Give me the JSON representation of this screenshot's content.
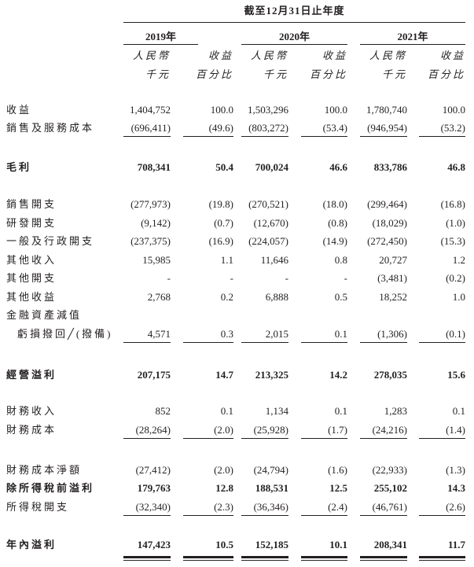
{
  "header": {
    "period_title": "截至12月31日止年度",
    "years": [
      "2019年",
      "2020年",
      "2021年"
    ],
    "col_sub_amount": [
      "人民幣",
      "千元"
    ],
    "col_sub_percent": [
      "收益",
      "百分比"
    ]
  },
  "rows": [
    {
      "label": "收益",
      "values": [
        "1,404,752",
        "100.0",
        "1,503,296",
        "100.0",
        "1,780,740",
        "100.0"
      ]
    },
    {
      "label": "銷售及服務成本",
      "values": [
        "(696,411)",
        "(49.6)",
        "(803,272)",
        "(53.4)",
        "(946,954)",
        "(53.2)"
      ],
      "rule": "single"
    },
    {
      "label": "毛利",
      "values": [
        "708,341",
        "50.4",
        "700,024",
        "46.6",
        "833,786",
        "46.8"
      ],
      "bold": true
    },
    {
      "label": "銷售開支",
      "values": [
        "(277,973)",
        "(19.8)",
        "(270,521)",
        "(18.0)",
        "(299,464)",
        "(16.8)"
      ]
    },
    {
      "label": "研發開支",
      "values": [
        "(9,142)",
        "(0.7)",
        "(12,670)",
        "(0.8)",
        "(18,029)",
        "(1.0)"
      ]
    },
    {
      "label": "一般及行政開支",
      "values": [
        "(237,375)",
        "(16.9)",
        "(224,057)",
        "(14.9)",
        "(272,450)",
        "(15.3)"
      ]
    },
    {
      "label": "其他收入",
      "values": [
        "15,985",
        "1.1",
        "11,646",
        "0.8",
        "20,727",
        "1.2"
      ]
    },
    {
      "label": "其他開支",
      "values": [
        "-",
        "-",
        "-",
        "-",
        "(3,481)",
        "(0.2)"
      ]
    },
    {
      "label": "其他收益",
      "values": [
        "2,768",
        "0.2",
        "6,888",
        "0.5",
        "18,252",
        "1.0"
      ]
    },
    {
      "label": "金融資產減值",
      "values": [
        "",
        "",
        "",
        "",
        "",
        ""
      ]
    },
    {
      "label": "虧損撥回╱(撥備)",
      "values": [
        "4,571",
        "0.3",
        "2,015",
        "0.1",
        "(1,306)",
        "(0.1)"
      ],
      "rule": "single",
      "indent": true
    },
    {
      "label": "經營溢利",
      "values": [
        "207,175",
        "14.7",
        "213,325",
        "14.2",
        "278,035",
        "15.6"
      ],
      "bold": true
    },
    {
      "label": "財務收入",
      "values": [
        "852",
        "0.1",
        "1,134",
        "0.1",
        "1,283",
        "0.1"
      ]
    },
    {
      "label": "財務成本",
      "values": [
        "(28,264)",
        "(2.0)",
        "(25,928)",
        "(1.7)",
        "(24,216)",
        "(1.4)"
      ],
      "rule": "single"
    },
    {
      "label": "財務成本淨額",
      "values": [
        "(27,412)",
        "(2.0)",
        "(24,794)",
        "(1.6)",
        "(22,933)",
        "(1.3)"
      ]
    },
    {
      "label": "除所得稅前溢利",
      "values": [
        "179,763",
        "12.8",
        "188,531",
        "12.5",
        "255,102",
        "14.3"
      ],
      "bold": true
    },
    {
      "label": "所得稅開支",
      "values": [
        "(32,340)",
        "(2.3)",
        "(36,346)",
        "(2.4)",
        "(46,761)",
        "(2.6)"
      ],
      "rule": "single"
    },
    {
      "label": "年內溢利",
      "values": [
        "147,423",
        "10.5",
        "152,185",
        "10.1",
        "208,341",
        "11.7"
      ],
      "bold": true,
      "rule": "double"
    }
  ]
}
